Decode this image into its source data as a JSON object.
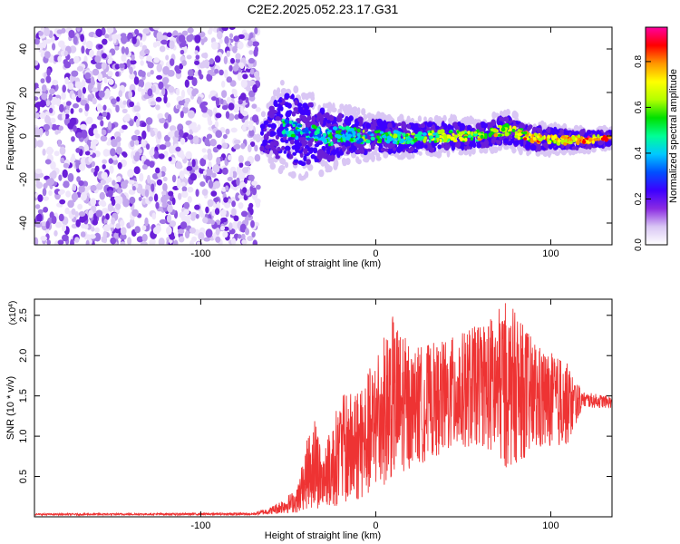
{
  "figure": {
    "title": "C2E2.2025.052.23.17.G31"
  },
  "chart_data": [
    {
      "type": "heatmap",
      "xlabel": "Height of straight line (km)",
      "ylabel": "Frequency (Hz)",
      "xlim": [
        -195,
        135
      ],
      "ylim": [
        -50,
        50
      ],
      "x_ticks": [
        -100,
        0,
        100
      ],
      "y_ticks": [
        -40,
        -20,
        0,
        20,
        40
      ],
      "noise_region_x": [
        -195,
        -67
      ],
      "signal_band": [
        {
          "x": -65,
          "center": 0,
          "halfwidth": 6
        },
        {
          "x": -58,
          "center": 3,
          "halfwidth": 12
        },
        {
          "x": -50,
          "center": 4,
          "halfwidth": 16
        },
        {
          "x": -42,
          "center": 1,
          "halfwidth": 14
        },
        {
          "x": -35,
          "center": 2,
          "halfwidth": 13
        },
        {
          "x": -28,
          "center": -1,
          "halfwidth": 11
        },
        {
          "x": -20,
          "center": 1,
          "halfwidth": 9
        },
        {
          "x": -10,
          "center": 0,
          "halfwidth": 8
        },
        {
          "x": 0,
          "center": 0,
          "halfwidth": 7
        },
        {
          "x": 20,
          "center": -1,
          "halfwidth": 6
        },
        {
          "x": 40,
          "center": 0,
          "halfwidth": 6
        },
        {
          "x": 60,
          "center": 0,
          "halfwidth": 5
        },
        {
          "x": 75,
          "center": 3,
          "halfwidth": 6
        },
        {
          "x": 90,
          "center": -1,
          "halfwidth": 5
        },
        {
          "x": 110,
          "center": -2,
          "halfwidth": 4
        },
        {
          "x": 135,
          "center": -1,
          "halfwidth": 3
        }
      ],
      "colorbar": {
        "label": "Normalized spectral amplitude",
        "range": [
          0,
          0.95
        ],
        "ticks": [
          "0.0",
          "0.2",
          "0.4",
          "0.6",
          "0.8"
        ],
        "colors": [
          "#ffffff",
          "#d9c6f4",
          "#8a2be2",
          "#3d00ff",
          "#0050ff",
          "#00c8ff",
          "#00ff96",
          "#00e000",
          "#b4ff00",
          "#ffff00",
          "#ff9600",
          "#ff0000",
          "#ff00a0"
        ]
      }
    },
    {
      "type": "line",
      "xlabel": "Height of straight line (km)",
      "ylabel": "SNR (10 * v/v)",
      "y_multiplier": "(x10",
      "y_multiplier_exp": "4",
      "y_multiplier_close": ")",
      "xlim": [
        -195,
        135
      ],
      "ylim": [
        0,
        2.7
      ],
      "x_ticks": [
        -100,
        0,
        100
      ],
      "y_ticks": [
        "0.5",
        "1.0",
        "1.5",
        "2.0",
        "2.5"
      ],
      "series": [
        {
          "color": "#ee3333",
          "envelope": [
            {
              "x": -195,
              "min": 0.02,
              "max": 0.04
            },
            {
              "x": -70,
              "min": 0.02,
              "max": 0.05
            },
            {
              "x": -60,
              "min": 0.03,
              "max": 0.12
            },
            {
              "x": -45,
              "min": 0.05,
              "max": 0.35
            },
            {
              "x": -40,
              "min": 0.1,
              "max": 0.9
            },
            {
              "x": -35,
              "min": 0.1,
              "max": 1.3
            },
            {
              "x": -30,
              "min": 0.1,
              "max": 0.8
            },
            {
              "x": -20,
              "min": 0.15,
              "max": 1.5
            },
            {
              "x": -10,
              "min": 0.2,
              "max": 1.6
            },
            {
              "x": 0,
              "min": 0.3,
              "max": 2.0
            },
            {
              "x": 10,
              "min": 0.5,
              "max": 2.5
            },
            {
              "x": 20,
              "min": 0.6,
              "max": 2.1
            },
            {
              "x": 40,
              "min": 0.8,
              "max": 2.2
            },
            {
              "x": 60,
              "min": 0.9,
              "max": 2.4
            },
            {
              "x": 75,
              "min": 0.6,
              "max": 2.7
            },
            {
              "x": 90,
              "min": 0.8,
              "max": 2.2
            },
            {
              "x": 110,
              "min": 0.9,
              "max": 1.9
            },
            {
              "x": 118,
              "min": 1.35,
              "max": 1.55
            },
            {
              "x": 135,
              "min": 1.35,
              "max": 1.5
            }
          ]
        }
      ]
    }
  ]
}
